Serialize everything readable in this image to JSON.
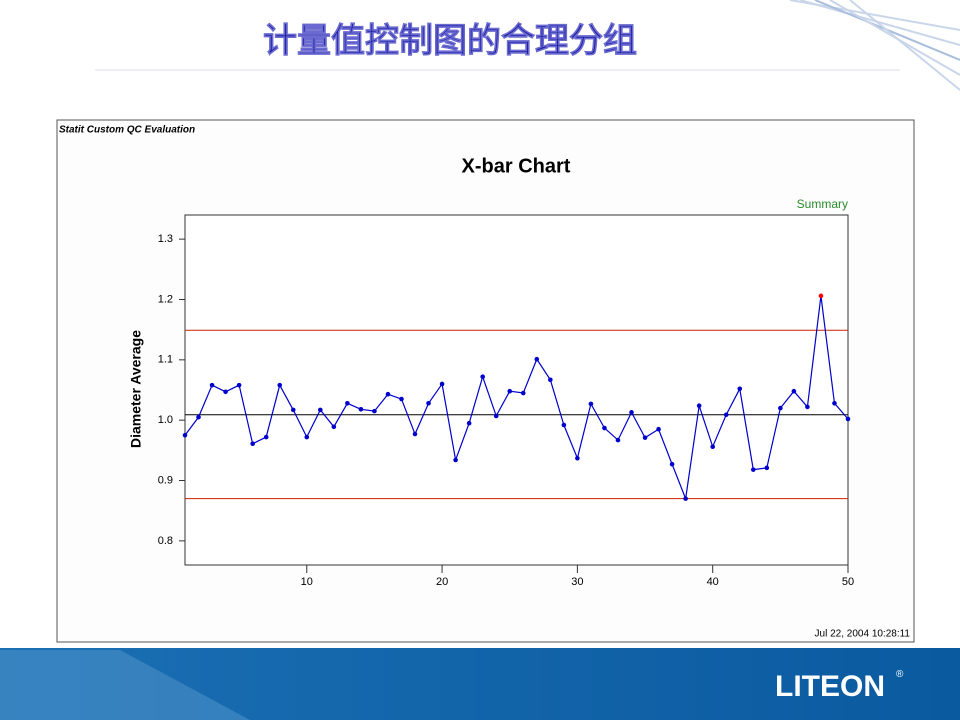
{
  "slide": {
    "title": "计量值控制图的合理分组",
    "logo": "LITEON",
    "logo_mark": "®"
  },
  "chart_data": {
    "type": "line",
    "header": "Statit Custom QC Evaluation",
    "title": "X-bar Chart",
    "subtitle": "Summary",
    "y_label": "Diameter Average",
    "footer": "Jul 22, 2004 10:28:11",
    "x": [
      1,
      2,
      3,
      4,
      5,
      6,
      7,
      8,
      9,
      10,
      11,
      12,
      13,
      14,
      15,
      16,
      17,
      18,
      19,
      20,
      21,
      22,
      23,
      24,
      25,
      26,
      27,
      28,
      29,
      30,
      31,
      32,
      33,
      34,
      35,
      36,
      37,
      38,
      39,
      40,
      41,
      42,
      43,
      44,
      45,
      46,
      47,
      48,
      49,
      50
    ],
    "series": [
      {
        "name": "Diameter Average",
        "color": "#0000cc",
        "values": [
          0.975,
          1.005,
          1.058,
          1.047,
          1.058,
          0.961,
          0.972,
          1.058,
          1.017,
          0.972,
          1.017,
          0.989,
          1.028,
          1.018,
          1.015,
          1.043,
          1.035,
          0.977,
          1.028,
          1.06,
          0.934,
          0.995,
          1.072,
          1.007,
          1.048,
          1.045,
          1.101,
          1.067,
          0.992,
          0.937,
          1.027,
          0.987,
          0.967,
          1.013,
          0.971,
          0.985,
          0.927,
          0.87,
          1.024,
          0.956,
          1.009,
          1.052,
          0.918,
          0.921,
          1.02,
          1.048,
          1.022,
          1.206,
          1.028,
          1.002
        ]
      }
    ],
    "out_of_control_color": "#ff0000",
    "reference_lines": [
      {
        "value": 1.149,
        "color": "#cc2200",
        "kind": "limit"
      },
      {
        "value": 1.009,
        "color": "#000000",
        "kind": "center"
      },
      {
        "value": 0.87,
        "color": "#cc2200",
        "kind": "limit"
      }
    ],
    "xlim": [
      1,
      50
    ],
    "xticks": [
      10,
      20,
      30,
      40,
      50
    ],
    "ylim": [
      0.76,
      1.34
    ],
    "yticks": [
      0.8,
      0.9,
      {
        "value": 1,
        "label": "1.0"
      },
      1.1,
      1.2,
      1.3
    ]
  }
}
